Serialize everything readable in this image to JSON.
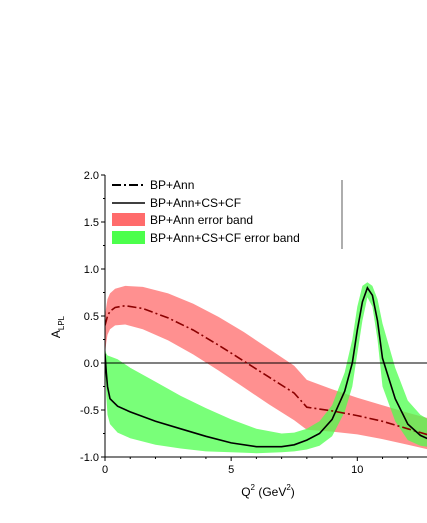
{
  "chart_data": {
    "type": "line",
    "xlabel_main": "Q",
    "xlabel_sup": "2",
    "xlabel_unit_pre": " (GeV",
    "xlabel_unit_sup": "2",
    "xlabel_unit_post": ")",
    "ylabel_main": "A",
    "ylabel_sub": "LPL",
    "xlim": [
      0,
      13
    ],
    "ylim": [
      -1.0,
      2.0
    ],
    "xticks": [
      0,
      5,
      10
    ],
    "yticks": [
      -1.0,
      -0.5,
      0.0,
      0.5,
      1.0,
      1.5,
      2.0
    ],
    "xtick_labels": [
      "0",
      "5",
      "10"
    ],
    "ytick_labels": [
      "-1.0",
      "-0.5",
      "0.0",
      "0.5",
      "1.0",
      "1.5",
      "2.0"
    ],
    "reference_line_y": 0.0,
    "legend_position": "top-right",
    "colors": {
      "bp_ann_line": "#8b0000",
      "bp_full_line": "#000000",
      "bp_ann_band": "#ff6b6b",
      "bp_full_band": "#4cff4c"
    },
    "series": [
      {
        "name": "BP+Ann",
        "style": "dash-dot",
        "x": [
          0.0,
          0.05,
          0.1,
          0.2,
          0.4,
          0.8,
          1.5,
          2.5,
          3.5,
          4.5,
          5.5,
          6.5,
          7.5,
          8.0,
          9.0,
          10.0,
          11.0,
          12.0,
          13.0
        ],
        "y": [
          0.4,
          0.45,
          0.5,
          0.55,
          0.59,
          0.61,
          0.58,
          0.48,
          0.35,
          0.19,
          0.02,
          -0.15,
          -0.32,
          -0.47,
          -0.51,
          -0.56,
          -0.62,
          -0.7,
          -0.78
        ]
      },
      {
        "name": "BP+Ann+CS+CF",
        "style": "solid",
        "x": [
          0.0,
          0.05,
          0.1,
          0.2,
          0.5,
          1.0,
          2.0,
          3.0,
          4.0,
          5.0,
          6.0,
          7.0,
          7.5,
          8.0,
          8.5,
          9.0,
          9.5,
          9.8,
          10.0,
          10.2,
          10.4,
          10.6,
          10.8,
          11.0,
          11.5,
          12.0,
          12.5,
          13.0
        ],
        "y": [
          0.1,
          -0.1,
          -0.25,
          -0.38,
          -0.46,
          -0.52,
          -0.62,
          -0.7,
          -0.78,
          -0.85,
          -0.89,
          -0.89,
          -0.87,
          -0.82,
          -0.75,
          -0.6,
          -0.3,
          0.0,
          0.35,
          0.65,
          0.8,
          0.72,
          0.45,
          0.05,
          -0.38,
          -0.65,
          -0.77,
          -0.83
        ]
      },
      {
        "name": "BP+Ann error band",
        "style": "band",
        "x": [
          0.0,
          0.05,
          0.1,
          0.2,
          0.4,
          0.8,
          1.5,
          2.5,
          3.5,
          4.5,
          5.5,
          6.5,
          7.5,
          8.0,
          9.0,
          10.0,
          11.0,
          12.0,
          13.0
        ],
        "y_upper": [
          0.5,
          0.6,
          0.68,
          0.74,
          0.79,
          0.82,
          0.81,
          0.74,
          0.63,
          0.49,
          0.33,
          0.15,
          -0.03,
          -0.18,
          -0.28,
          -0.37,
          -0.45,
          -0.53,
          -0.6
        ],
        "y_lower": [
          0.1,
          0.22,
          0.3,
          0.36,
          0.4,
          0.41,
          0.36,
          0.24,
          0.09,
          -0.08,
          -0.26,
          -0.44,
          -0.61,
          -0.71,
          -0.73,
          -0.76,
          -0.81,
          -0.87,
          -0.93
        ]
      },
      {
        "name": "BP+Ann+CS+CF error band",
        "style": "band",
        "x": [
          0.0,
          0.05,
          0.1,
          0.2,
          0.5,
          1.0,
          2.0,
          3.0,
          4.0,
          5.0,
          6.0,
          7.0,
          7.5,
          8.0,
          8.5,
          9.0,
          9.5,
          9.8,
          10.0,
          10.2,
          10.4,
          10.6,
          10.8,
          11.0,
          11.5,
          12.0,
          12.5,
          13.0
        ],
        "y_upper": [
          0.15,
          0.1,
          0.08,
          0.07,
          0.04,
          -0.05,
          -0.2,
          -0.35,
          -0.48,
          -0.6,
          -0.7,
          -0.75,
          -0.74,
          -0.7,
          -0.62,
          -0.45,
          -0.1,
          0.25,
          0.6,
          0.82,
          0.86,
          0.82,
          0.68,
          0.42,
          -0.05,
          -0.4,
          -0.55,
          -0.63
        ],
        "y_lower": [
          0.0,
          -0.35,
          -0.55,
          -0.65,
          -0.74,
          -0.8,
          -0.87,
          -0.91,
          -0.94,
          -0.95,
          -0.96,
          -0.95,
          -0.94,
          -0.92,
          -0.88,
          -0.78,
          -0.52,
          -0.25,
          0.1,
          0.45,
          0.7,
          0.6,
          0.25,
          -0.25,
          -0.62,
          -0.82,
          -0.88,
          -0.9
        ]
      }
    ]
  }
}
